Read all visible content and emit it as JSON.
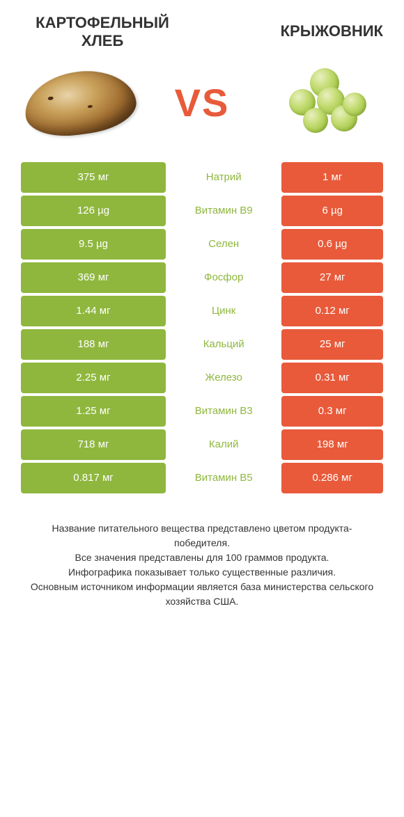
{
  "header": {
    "left_title": "КАРТОФЕЛЬНЫЙ ХЛЕБ",
    "right_title": "КРЫЖОВНИК",
    "vs": "VS"
  },
  "colors": {
    "left": "#8fb73e",
    "right": "#e85a3a",
    "text_dark": "#333333",
    "background": "#ffffff"
  },
  "table": {
    "rows": [
      {
        "nutrient": "Натрий",
        "left_value": "375 мг",
        "right_value": "1 мг",
        "winner": "left"
      },
      {
        "nutrient": "Витамин B9",
        "left_value": "126 µg",
        "right_value": "6 µg",
        "winner": "left"
      },
      {
        "nutrient": "Селен",
        "left_value": "9.5 µg",
        "right_value": "0.6 µg",
        "winner": "left"
      },
      {
        "nutrient": "Фосфор",
        "left_value": "369 мг",
        "right_value": "27 мг",
        "winner": "left"
      },
      {
        "nutrient": "Цинк",
        "left_value": "1.44 мг",
        "right_value": "0.12 мг",
        "winner": "left"
      },
      {
        "nutrient": "Кальций",
        "left_value": "188 мг",
        "right_value": "25 мг",
        "winner": "left"
      },
      {
        "nutrient": "Железо",
        "left_value": "2.25 мг",
        "right_value": "0.31 мг",
        "winner": "left"
      },
      {
        "nutrient": "Витамин B3",
        "left_value": "1.25 мг",
        "right_value": "0.3 мг",
        "winner": "left"
      },
      {
        "nutrient": "Калий",
        "left_value": "718 мг",
        "right_value": "198 мг",
        "winner": "left"
      },
      {
        "nutrient": "Витамин B5",
        "left_value": "0.817 мг",
        "right_value": "0.286 мг",
        "winner": "left"
      }
    ]
  },
  "footer": {
    "line1": "Название питательного вещества представлено цветом продукта-победителя.",
    "line2": "Все значения представлены для 100 граммов продукта.",
    "line3": "Инфографика показывает только существенные различия.",
    "line4": "Основным источником информации является база министерства сельского хозяйства США."
  }
}
